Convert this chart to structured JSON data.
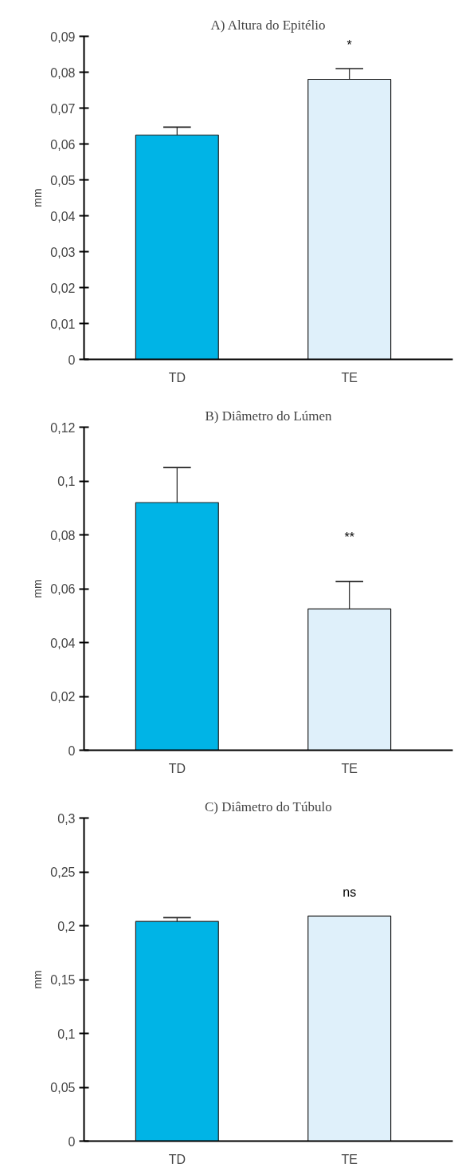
{
  "chart_data": [
    {
      "type": "bar",
      "title": "A) Altura do Epitélio",
      "ylabel": "mm",
      "categories": [
        "TD",
        "TE"
      ],
      "values": [
        0.0625,
        0.078
      ],
      "colors": [
        "#00b4e6",
        "#dff0fa"
      ],
      "errors": [
        [
          0.0625,
          0.0647
        ],
        [
          0.078,
          0.081
        ]
      ],
      "ylim": [
        0,
        0.09
      ],
      "yticks": [
        0,
        {
          "value": 0.01,
          "label": "0,01"
        },
        {
          "value": 0.02,
          "label": "0,02"
        },
        {
          "value": 0.03,
          "label": "0,03"
        },
        {
          "value": 0.04,
          "label": "0,04"
        },
        {
          "value": 0.05,
          "label": "0,05"
        },
        {
          "value": 0.06,
          "label": "0,06"
        },
        {
          "value": 0.07,
          "label": "0,07"
        },
        {
          "value": 0.08,
          "label": "0,08"
        },
        {
          "value": 0.09,
          "label": "0,09"
        }
      ],
      "annotations": [
        "*"
      ]
    },
    {
      "type": "bar",
      "title": "B) Diâmetro do Lúmen",
      "ylabel": "mm",
      "categories": [
        "TD",
        "TE"
      ],
      "values": [
        0.092,
        0.0525
      ],
      "colors": [
        "#00b4e6",
        "#dff0fa"
      ],
      "errors": [
        [
          0.092,
          0.105
        ],
        [
          0.0525,
          0.0627
        ]
      ],
      "ylim": [
        0,
        0.12
      ],
      "yticks": [
        0,
        {
          "value": 0.02,
          "label": "0,02"
        },
        {
          "value": 0.04,
          "label": "0,04"
        },
        {
          "value": 0.06,
          "label": "0,06"
        },
        {
          "value": 0.08,
          "label": "0,08"
        },
        {
          "value": 0.1,
          "label": "0,1"
        },
        {
          "value": 0.12,
          "label": "0,12"
        }
      ],
      "annotations": [
        "**"
      ]
    },
    {
      "type": "bar",
      "title": "C) Diâmetro do Túbulo",
      "ylabel": "mm",
      "categories": [
        "TD",
        "TE"
      ],
      "values": [
        0.204,
        0.209
      ],
      "colors": [
        "#00b4e6",
        "#dff0fa"
      ],
      "errors": [
        [
          0.204,
          0.2075
        ],
        null
      ],
      "ylim": [
        0,
        0.3
      ],
      "yticks": [
        0,
        {
          "value": 0.05,
          "label": "0,05"
        },
        {
          "value": 0.1,
          "label": "0,1"
        },
        {
          "value": 0.15,
          "label": "0,15"
        },
        {
          "value": 0.2,
          "label": "0,2"
        },
        {
          "value": 0.25,
          "label": "0,25"
        },
        {
          "value": 0.3,
          "label": "0,3"
        }
      ],
      "annotations": [
        "ns"
      ]
    }
  ]
}
